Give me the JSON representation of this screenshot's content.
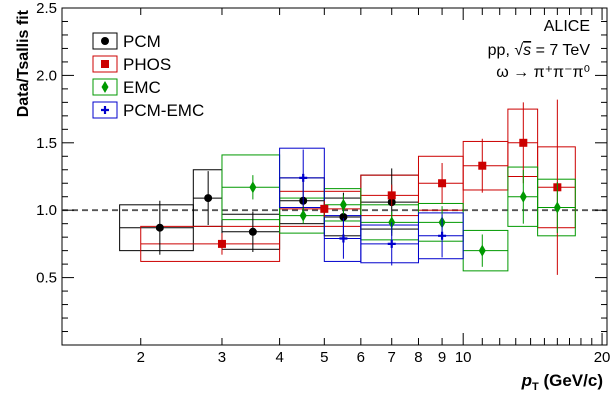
{
  "chart_data": {
    "type": "scatter",
    "title": "",
    "xlabel": "(GeV/c)",
    "xlabel_symbol": "p",
    "xlabel_subscript": "T",
    "ylabel": "Data/Tsallis fit",
    "xscale": "log",
    "xlim": [
      1.35,
      20.5
    ],
    "ylim": [
      0,
      2.5
    ],
    "x_ticks": [
      2,
      3,
      4,
      5,
      6,
      7,
      8,
      9,
      10,
      20
    ],
    "x_tick_labels": [
      "2",
      "3",
      "4",
      "5",
      "6",
      "7",
      "8",
      "9",
      "10",
      "20"
    ],
    "y_ticks": [
      0.5,
      1.0,
      1.5,
      2.0,
      2.5
    ],
    "y_tick_labels": [
      "0.5",
      "1.0",
      "1.5",
      "2.0",
      "2.5"
    ],
    "reference_line": 1.0,
    "legend_position": "top-left",
    "annotations": {
      "experiment": "ALICE",
      "system_prefix": "pp,",
      "sqrt_symbol": "√",
      "energy_var": "s",
      "energy_value": "= 7 TeV",
      "reaction": "ω → π⁺π⁻π⁰"
    },
    "series": [
      {
        "name": "PCM",
        "color": "#000000",
        "marker": "circle",
        "points": [
          {
            "x": 2.2,
            "xlo": 1.8,
            "xhi": 2.6,
            "y": 0.87,
            "stat": 0.2,
            "sys": 0.17
          },
          {
            "x": 2.8,
            "xlo": 2.6,
            "xhi": 3.0,
            "y": 1.09,
            "stat": 0.2,
            "sys": 0.21
          },
          {
            "x": 3.5,
            "xlo": 3.0,
            "xhi": 4.0,
            "y": 0.84,
            "stat": 0.15,
            "sys": 0.13
          },
          {
            "x": 4.5,
            "xlo": 4.0,
            "xhi": 5.0,
            "y": 1.07,
            "stat": 0.14,
            "sys": 0.17
          },
          {
            "x": 5.5,
            "xlo": 5.0,
            "xhi": 6.0,
            "y": 0.95,
            "stat": 0.18,
            "sys": 0.14
          },
          {
            "x": 7.0,
            "xlo": 6.0,
            "xhi": 8.0,
            "y": 1.06,
            "stat": 0.25,
            "sys": 0.2
          }
        ]
      },
      {
        "name": "PHOS",
        "color": "#cc0000",
        "marker": "square",
        "points": [
          {
            "x": 3.0,
            "xlo": 2.0,
            "xhi": 4.0,
            "y": 0.75,
            "stat": 0.08,
            "sys": 0.13
          },
          {
            "x": 5.0,
            "xlo": 4.0,
            "xhi": 6.0,
            "y": 1.01,
            "stat": 0.06,
            "sys": 0.13
          },
          {
            "x": 7.0,
            "xlo": 6.0,
            "xhi": 8.0,
            "y": 1.11,
            "stat": 0.08,
            "sys": 0.15
          },
          {
            "x": 9.0,
            "xlo": 8.0,
            "xhi": 10.0,
            "y": 1.2,
            "stat": 0.15,
            "sys": 0.2
          },
          {
            "x": 11.0,
            "xlo": 10.0,
            "xhi": 12.5,
            "y": 1.33,
            "stat": 0.2,
            "sys": 0.18
          },
          {
            "x": 13.5,
            "xlo": 12.5,
            "xhi": 14.5,
            "y": 1.5,
            "stat": 0.3,
            "sys": 0.25
          },
          {
            "x": 16.0,
            "xlo": 14.5,
            "xhi": 17.5,
            "y": 1.17,
            "stat": 0.65,
            "sys": 0.3
          }
        ]
      },
      {
        "name": "EMC",
        "color": "#009900",
        "marker": "diamond",
        "points": [
          {
            "x": 3.5,
            "xlo": 3.0,
            "xhi": 4.0,
            "y": 1.17,
            "stat": 0.09,
            "sys": 0.24
          },
          {
            "x": 4.5,
            "xlo": 4.0,
            "xhi": 5.0,
            "y": 0.96,
            "stat": 0.06,
            "sys": 0.13
          },
          {
            "x": 5.5,
            "xlo": 5.0,
            "xhi": 6.0,
            "y": 1.04,
            "stat": 0.07,
            "sys": 0.12
          },
          {
            "x": 7.0,
            "xlo": 6.0,
            "xhi": 8.0,
            "y": 0.91,
            "stat": 0.08,
            "sys": 0.13
          },
          {
            "x": 9.0,
            "xlo": 8.0,
            "xhi": 10.0,
            "y": 0.91,
            "stat": 0.12,
            "sys": 0.14
          },
          {
            "x": 11.0,
            "xlo": 10.0,
            "xhi": 12.5,
            "y": 0.7,
            "stat": 0.12,
            "sys": 0.15
          },
          {
            "x": 13.5,
            "xlo": 12.5,
            "xhi": 14.5,
            "y": 1.1,
            "stat": 0.2,
            "sys": 0.22
          },
          {
            "x": 16.0,
            "xlo": 14.5,
            "xhi": 17.5,
            "y": 1.02,
            "stat": 0.19,
            "sys": 0.21
          }
        ]
      },
      {
        "name": "PCM-EMC",
        "color": "#0000cc",
        "marker": "cross",
        "points": [
          {
            "x": 4.5,
            "xlo": 4.0,
            "xhi": 5.0,
            "y": 1.24,
            "stat": 0.21,
            "sys": 0.22
          },
          {
            "x": 5.5,
            "xlo": 5.0,
            "xhi": 6.0,
            "y": 0.79,
            "stat": 0.15,
            "sys": 0.17
          },
          {
            "x": 7.0,
            "xlo": 6.0,
            "xhi": 8.0,
            "y": 0.75,
            "stat": 0.16,
            "sys": 0.14
          },
          {
            "x": 9.0,
            "xlo": 8.0,
            "xhi": 10.0,
            "y": 0.81,
            "stat": 0.16,
            "sys": 0.17
          }
        ]
      }
    ]
  }
}
